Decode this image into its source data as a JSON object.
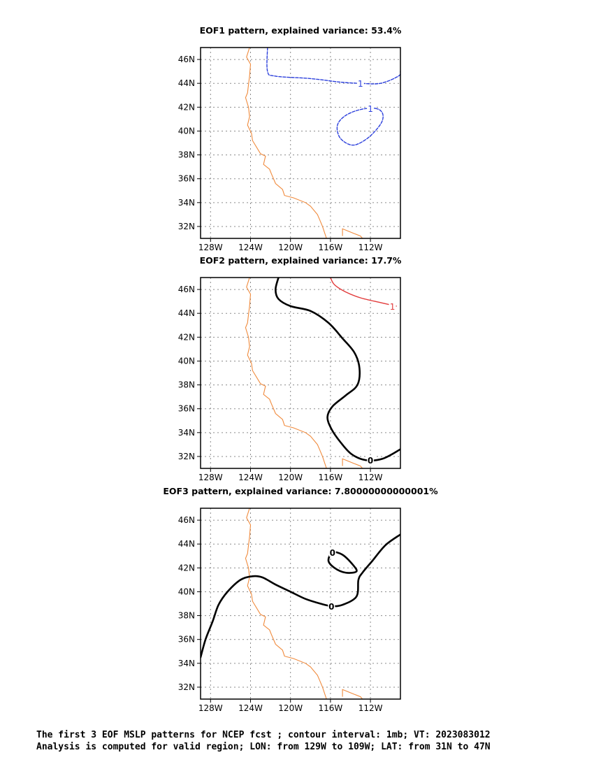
{
  "panels": [
    {
      "title": "EOF1 pattern, explained variance: 53.4%",
      "contours": [
        {
          "value": 1,
          "label": "1",
          "color": "#2b3fdc",
          "style": "dashed",
          "points": [
            [
              -122.3,
              47
            ],
            [
              -122.3,
              45
            ],
            [
              -121.5,
              44.6
            ],
            [
              -118,
              44.4
            ],
            [
              -115,
              44.1
            ],
            [
              -113,
              44.0
            ],
            [
              -111,
              44.0
            ],
            [
              -109.2,
              44.6
            ],
            [
              -109,
              45
            ]
          ]
        },
        {
          "value": 1,
          "label": "1",
          "color": "#2b3fdc",
          "style": "dashed",
          "closed": true,
          "points": [
            [
              -111.5,
              41.9
            ],
            [
              -113,
              41.8
            ],
            [
              -114.5,
              41.3
            ],
            [
              -115.3,
              40.5
            ],
            [
              -115.1,
              39.5
            ],
            [
              -114.2,
              38.9
            ],
            [
              -113.3,
              38.9
            ],
            [
              -112,
              39.6
            ],
            [
              -110.9,
              40.7
            ],
            [
              -110.8,
              41.5
            ],
            [
              -111.5,
              41.9
            ]
          ]
        }
      ]
    },
    {
      "title": "EOF2 pattern, explained variance: 17.7%",
      "contours": [
        {
          "value": 0,
          "label": "0",
          "color": "#000000",
          "style": "solid-thick",
          "points": [
            [
              -121.2,
              47
            ],
            [
              -121.5,
              46
            ],
            [
              -121.2,
              45.2
            ],
            [
              -120,
              44.6
            ],
            [
              -118,
              44.2
            ],
            [
              -116.2,
              43.2
            ],
            [
              -114.8,
              41.9
            ],
            [
              -113.6,
              40.7
            ],
            [
              -113.1,
              39.4
            ],
            [
              -113.3,
              38.0
            ],
            [
              -114.5,
              37.1
            ],
            [
              -115.8,
              36.2
            ],
            [
              -116.3,
              35.3
            ],
            [
              -115.9,
              34.3
            ],
            [
              -115,
              33.2
            ],
            [
              -113.9,
              32.2
            ],
            [
              -112.5,
              31.7
            ],
            [
              -110.8,
              31.8
            ],
            [
              -109,
              32.6
            ]
          ]
        },
        {
          "value": 1,
          "label": "1",
          "color": "#e23a3a",
          "style": "solid",
          "points": [
            [
              -116,
              47
            ],
            [
              -115.6,
              46.4
            ],
            [
              -114.5,
              45.8
            ],
            [
              -113,
              45.3
            ],
            [
              -111,
              44.9
            ],
            [
              -109.4,
              44.6
            ]
          ]
        }
      ]
    },
    {
      "title": "EOF3 pattern, explained variance: 7.80000000000001%",
      "contours": [
        {
          "value": 0,
          "label": "0",
          "color": "#000000",
          "style": "solid-thick",
          "points": [
            [
              -129,
              34.5
            ],
            [
              -128.5,
              36
            ],
            [
              -127.8,
              37.5
            ],
            [
              -127.2,
              38.9
            ],
            [
              -126.3,
              40
            ],
            [
              -125,
              41.0
            ],
            [
              -123.8,
              41.3
            ],
            [
              -122.8,
              41.2
            ],
            [
              -121.5,
              40.6
            ],
            [
              -120,
              40
            ],
            [
              -118.5,
              39.4
            ],
            [
              -117,
              39.0
            ],
            [
              -115.9,
              38.8
            ],
            [
              -114.8,
              38.9
            ],
            [
              -113.4,
              39.6
            ],
            [
              -113.2,
              41
            ],
            [
              -112.8,
              41.6
            ],
            [
              -111.8,
              42.6
            ],
            [
              -110.5,
              43.9
            ],
            [
              -109,
              44.8
            ]
          ]
        },
        {
          "value": 0,
          "label": "0",
          "color": "#000000",
          "style": "solid-thick",
          "closed": true,
          "points": [
            [
              -115.8,
              43.3
            ],
            [
              -116.2,
              42.6
            ],
            [
              -115.6,
              42
            ],
            [
              -114.5,
              41.6
            ],
            [
              -113.4,
              41.7
            ],
            [
              -113.8,
              42.3
            ],
            [
              -114.8,
              43.1
            ],
            [
              -115.8,
              43.3
            ]
          ]
        }
      ]
    }
  ],
  "axes": {
    "x_ticks": [
      "128W",
      "124W",
      "120W",
      "116W",
      "112W"
    ],
    "y_ticks": [
      "46N",
      "44N",
      "42N",
      "40N",
      "38N",
      "36N",
      "34N",
      "32N"
    ],
    "lon_range": [
      -129,
      -109
    ],
    "lat_range": [
      31,
      47
    ]
  },
  "coastline_color": "#f08a3c",
  "caption_line1": "The first 3 EOF MSLP patterns for NCEP fcst ; contour interval: 1mb; VT: 2023083012",
  "caption_line2": "Analysis is computed for valid region; LON: from 129W to 109W; LAT: from 31N to 47N"
}
